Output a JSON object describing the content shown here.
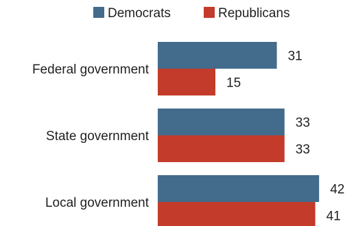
{
  "chart_data": {
    "type": "bar",
    "orientation": "horizontal",
    "categories": [
      "Federal government",
      "State government",
      "Local government"
    ],
    "series": [
      {
        "name": "Democrats",
        "values": [
          31,
          33,
          42
        ]
      },
      {
        "name": "Republicans",
        "values": [
          15,
          33,
          41
        ]
      }
    ],
    "colors": {
      "Democrats": "#436b8b",
      "Republicans": "#c33b2a"
    },
    "legend_position": "top",
    "data_labels": true,
    "grid": false,
    "xlim": [
      0,
      45
    ]
  }
}
